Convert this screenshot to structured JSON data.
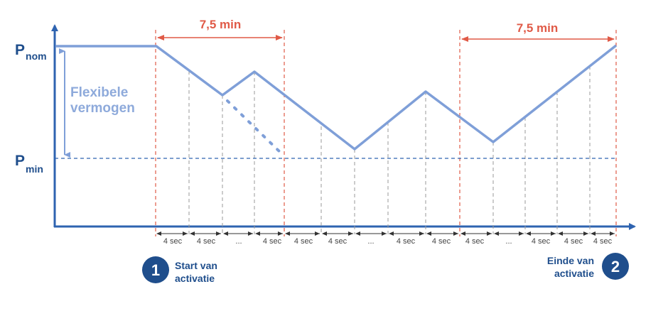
{
  "labels": {
    "p_nom": "P",
    "p_nom_sub": "nom",
    "p_min": "P",
    "p_min_sub": "min",
    "flex_line1": "Flexibele",
    "flex_line2": "vermogen",
    "duration_left": "7,5 min",
    "duration_right": "7,5 min"
  },
  "intervals": [
    "4 sec",
    "4 sec",
    "...",
    "4 sec",
    "4 sec",
    "4 sec",
    "...",
    "4 sec",
    "4 sec",
    "4 sec",
    "...",
    "4 sec",
    "4 sec",
    "4 sec"
  ],
  "start_marker": {
    "number": "1",
    "line1": "Start van",
    "line2": "activatie"
  },
  "end_marker": {
    "number": "2",
    "line1": "Einde van",
    "line2": "activatie"
  },
  "colors": {
    "axis": "#2e63b0",
    "power_line": "#7f9fd8",
    "red_marker": "#e05a47",
    "grid_dash": "#9a9a9a",
    "badge": "#1f4e8c"
  }
}
